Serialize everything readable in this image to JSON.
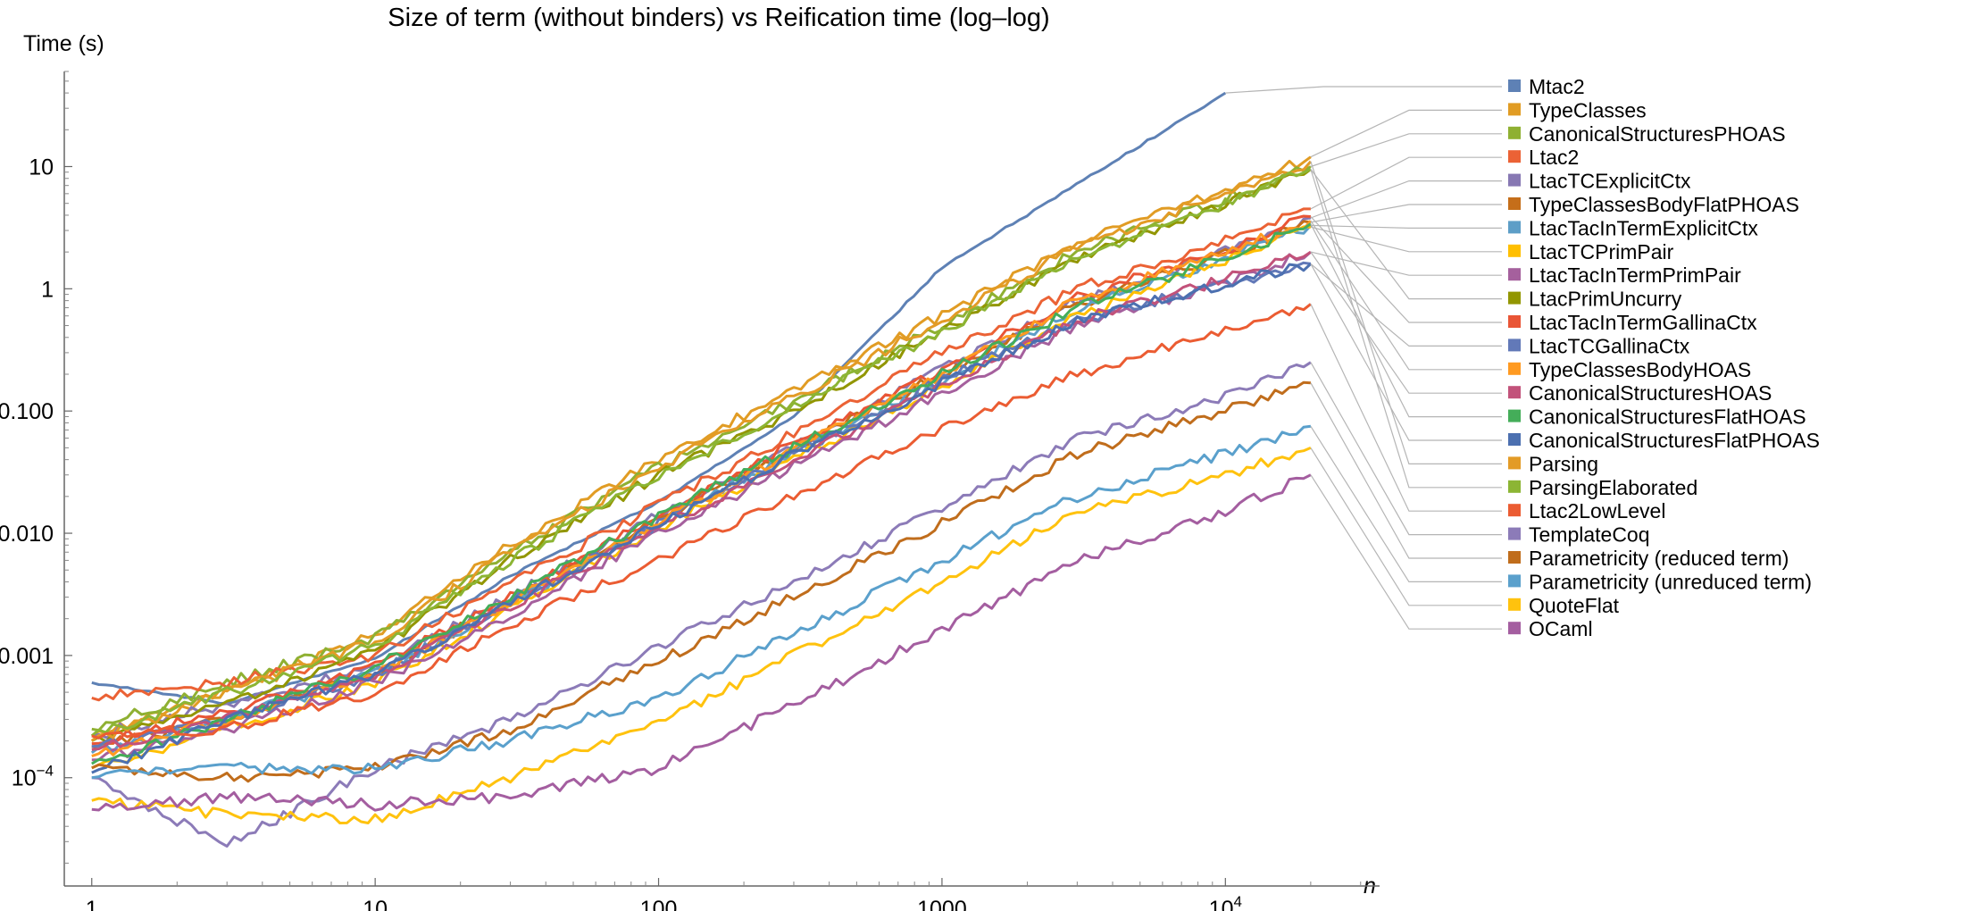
{
  "chart_data": {
    "type": "line",
    "title": "Size of term (without binders) vs Reification time (log–log)",
    "xlabel": "n",
    "ylabel": "Time (s)",
    "x_scale": "log",
    "y_scale": "log",
    "xlim": [
      0.8,
      35000
    ],
    "ylim": [
      1.3e-05,
      60
    ],
    "x_ticks": [
      {
        "value": 1,
        "label": "1"
      },
      {
        "value": 10,
        "label": "10"
      },
      {
        "value": 100,
        "label": "100"
      },
      {
        "value": 1000,
        "label": "1000"
      },
      {
        "value": 10000,
        "label": "10",
        "exponent": "4"
      }
    ],
    "y_ticks": [
      {
        "value": 0.0001,
        "label": "10",
        "exponent": "−4"
      },
      {
        "value": 0.001,
        "label": "0.001"
      },
      {
        "value": 0.01,
        "label": "0.010"
      },
      {
        "value": 0.1,
        "label": "0.100"
      },
      {
        "value": 1,
        "label": "1"
      },
      {
        "value": 10,
        "label": "10"
      }
    ],
    "grid": false,
    "legend_position": "right",
    "series": [
      {
        "name": "Mtac2",
        "color": "#5e81b5",
        "points": [
          [
            1,
            0.0006
          ],
          [
            3,
            0.0004
          ],
          [
            10,
            0.00095
          ],
          [
            30,
            0.0045
          ],
          [
            100,
            0.018
          ],
          [
            300,
            0.09
          ],
          [
            1000,
            1.5
          ],
          [
            10000,
            40
          ]
        ]
      },
      {
        "name": "TypeClasses",
        "color": "#e19c24",
        "points": [
          [
            1,
            0.00022
          ],
          [
            3,
            0.0005
          ],
          [
            10,
            0.0015
          ],
          [
            30,
            0.008
          ],
          [
            100,
            0.04
          ],
          [
            300,
            0.15
          ],
          [
            1000,
            0.6
          ],
          [
            3000,
            2.4
          ],
          [
            10000,
            6.5
          ],
          [
            20000,
            12
          ]
        ]
      },
      {
        "name": "CanonicalStructuresPHOAS",
        "color": "#8fb032",
        "points": [
          [
            1,
            0.00025
          ],
          [
            3,
            0.0006
          ],
          [
            10,
            0.0014
          ],
          [
            30,
            0.007
          ],
          [
            100,
            0.035
          ],
          [
            300,
            0.12
          ],
          [
            1000,
            0.5
          ],
          [
            3000,
            2.0
          ],
          [
            10000,
            5.5
          ],
          [
            20000,
            10
          ]
        ]
      },
      {
        "name": "Ltac2",
        "color": "#eb6235",
        "points": [
          [
            1,
            0.00045
          ],
          [
            3,
            0.0006
          ],
          [
            10,
            0.001
          ],
          [
            30,
            0.004
          ],
          [
            100,
            0.017
          ],
          [
            300,
            0.065
          ],
          [
            1000,
            0.3
          ],
          [
            3000,
            1.0
          ],
          [
            10000,
            2.5
          ],
          [
            20000,
            4.5
          ]
        ]
      },
      {
        "name": "LtacTCExplicitCtx",
        "color": "#8778b3",
        "points": [
          [
            1,
            0.00022
          ],
          [
            3,
            0.0004
          ],
          [
            10,
            0.0008
          ],
          [
            30,
            0.003
          ],
          [
            100,
            0.014
          ],
          [
            300,
            0.05
          ],
          [
            1000,
            0.22
          ],
          [
            3000,
            0.8
          ],
          [
            10000,
            2.0
          ],
          [
            20000,
            3.8
          ]
        ]
      },
      {
        "name": "TypeClassesBodyFlatPHOAS",
        "color": "#c56e1a",
        "points": [
          [
            1,
            0.00018
          ],
          [
            3,
            0.0003
          ],
          [
            10,
            0.0007
          ],
          [
            30,
            0.0028
          ],
          [
            100,
            0.013
          ],
          [
            300,
            0.05
          ],
          [
            1000,
            0.2
          ],
          [
            3000,
            0.75
          ],
          [
            10000,
            1.9
          ],
          [
            20000,
            3.5
          ]
        ]
      },
      {
        "name": "LtacTacInTermExplicitCtx",
        "color": "#5d9ec7",
        "points": [
          [
            1,
            0.00016
          ],
          [
            3,
            0.0003
          ],
          [
            10,
            0.0007
          ],
          [
            30,
            0.0026
          ],
          [
            100,
            0.012
          ],
          [
            300,
            0.045
          ],
          [
            1000,
            0.18
          ],
          [
            3000,
            0.7
          ],
          [
            10000,
            1.8
          ],
          [
            20000,
            3.3
          ]
        ]
      },
      {
        "name": "LtacTCPrimPair",
        "color": "#ffbf00",
        "points": [
          [
            1,
            0.00012
          ],
          [
            3,
            0.00025
          ],
          [
            10,
            0.0006
          ],
          [
            30,
            0.0024
          ],
          [
            100,
            0.011
          ],
          [
            300,
            0.04
          ],
          [
            1000,
            0.16
          ],
          [
            3000,
            0.6
          ],
          [
            10000,
            1.7
          ],
          [
            20000,
            3.2
          ]
        ]
      },
      {
        "name": "LtacTacInTermPrimPair",
        "color": "#a5609d",
        "points": [
          [
            1,
            0.00014
          ],
          [
            3,
            0.00025
          ],
          [
            10,
            0.0006
          ],
          [
            30,
            0.0022
          ],
          [
            100,
            0.01
          ],
          [
            300,
            0.035
          ],
          [
            1000,
            0.14
          ],
          [
            3000,
            0.5
          ],
          [
            10000,
            1.1
          ],
          [
            20000,
            2.0
          ]
        ]
      },
      {
        "name": "LtacPrimUncurry",
        "color": "#929600",
        "points": [
          [
            1,
            0.0002
          ],
          [
            3,
            0.0004
          ],
          [
            10,
            0.0011
          ],
          [
            30,
            0.006
          ],
          [
            100,
            0.03
          ],
          [
            300,
            0.1
          ],
          [
            1000,
            0.45
          ],
          [
            3000,
            1.8
          ],
          [
            10000,
            5.0
          ],
          [
            20000,
            9.5
          ]
        ]
      },
      {
        "name": "LtacTacInTermGallinaCtx",
        "color": "#e95536",
        "points": [
          [
            1,
            0.00019
          ],
          [
            3,
            0.00035
          ],
          [
            10,
            0.0008
          ],
          [
            30,
            0.003
          ],
          [
            100,
            0.014
          ],
          [
            300,
            0.055
          ],
          [
            1000,
            0.22
          ],
          [
            3000,
            0.85
          ],
          [
            10000,
            2.1
          ],
          [
            20000,
            3.9
          ]
        ]
      },
      {
        "name": "LtacTCGallinaCtx",
        "color": "#6279b8",
        "points": [
          [
            1,
            0.00018
          ],
          [
            3,
            0.0003
          ],
          [
            10,
            0.0007
          ],
          [
            30,
            0.0027
          ],
          [
            100,
            0.012
          ],
          [
            300,
            0.045
          ],
          [
            1000,
            0.18
          ],
          [
            3000,
            0.55
          ],
          [
            10000,
            1.1
          ],
          [
            20000,
            1.6
          ]
        ]
      },
      {
        "name": "TypeClassesBodyHOAS",
        "color": "#ff9a21",
        "points": [
          [
            1,
            0.00015
          ],
          [
            3,
            0.0003
          ],
          [
            10,
            0.0007
          ],
          [
            30,
            0.0027
          ],
          [
            100,
            0.012
          ],
          [
            300,
            0.048
          ],
          [
            1000,
            0.2
          ],
          [
            3000,
            0.8
          ],
          [
            10000,
            2.0
          ],
          [
            20000,
            3.6
          ]
        ]
      },
      {
        "name": "CanonicalStructuresHOAS",
        "color": "#c2527a",
        "points": [
          [
            1,
            0.00017
          ],
          [
            3,
            0.0003
          ],
          [
            10,
            0.0007
          ],
          [
            30,
            0.0025
          ],
          [
            100,
            0.011
          ],
          [
            300,
            0.04
          ],
          [
            1000,
            0.16
          ],
          [
            3000,
            0.55
          ],
          [
            10000,
            1.2
          ],
          [
            20000,
            2.0
          ]
        ]
      },
      {
        "name": "CanonicalStructuresFlatHOAS",
        "color": "#44ad59",
        "points": [
          [
            1,
            0.00013
          ],
          [
            3,
            0.0003
          ],
          [
            10,
            0.0008
          ],
          [
            30,
            0.003
          ],
          [
            100,
            0.014
          ],
          [
            300,
            0.05
          ],
          [
            1000,
            0.2
          ],
          [
            3000,
            0.7
          ],
          [
            10000,
            1.8
          ],
          [
            20000,
            3.4
          ]
        ]
      },
      {
        "name": "CanonicalStructuresFlatPHOAS",
        "color": "#4c70b0",
        "points": [
          [
            1,
            0.00011
          ],
          [
            3,
            0.0003
          ],
          [
            10,
            0.0007
          ],
          [
            30,
            0.0026
          ],
          [
            100,
            0.012
          ],
          [
            300,
            0.044
          ],
          [
            1000,
            0.17
          ],
          [
            3000,
            0.55
          ],
          [
            10000,
            1.1
          ],
          [
            20000,
            1.6
          ]
        ]
      },
      {
        "name": "Parsing",
        "color": "#e39b26",
        "points": [
          [
            1,
            0.0002
          ],
          [
            3,
            0.0005
          ],
          [
            10,
            0.0013
          ],
          [
            30,
            0.007
          ],
          [
            100,
            0.035
          ],
          [
            300,
            0.13
          ],
          [
            1000,
            0.55
          ],
          [
            3000,
            2.2
          ],
          [
            10000,
            6.0
          ],
          [
            20000,
            11
          ]
        ]
      },
      {
        "name": "ParsingElaborated",
        "color": "#8cb534",
        "points": [
          [
            1,
            0.00022
          ],
          [
            3,
            0.0005
          ],
          [
            10,
            0.0012
          ],
          [
            30,
            0.006
          ],
          [
            100,
            0.03
          ],
          [
            300,
            0.11
          ],
          [
            1000,
            0.45
          ],
          [
            3000,
            1.8
          ],
          [
            10000,
            5.0
          ],
          [
            20000,
            9.5
          ]
        ]
      },
      {
        "name": "Ltac2LowLevel",
        "color": "#eb5c32",
        "points": [
          [
            1,
            0.00022
          ],
          [
            3,
            0.00025
          ],
          [
            10,
            0.0005
          ],
          [
            30,
            0.0018
          ],
          [
            100,
            0.006
          ],
          [
            300,
            0.02
          ],
          [
            1000,
            0.07
          ],
          [
            3000,
            0.2
          ],
          [
            10000,
            0.45
          ],
          [
            20000,
            0.75
          ]
        ]
      },
      {
        "name": "TemplateCoq",
        "color": "#8c7bb8",
        "points": [
          [
            1,
            0.0001
          ],
          [
            2,
            4.5e-05
          ],
          [
            3,
            2.8e-05
          ],
          [
            10,
            0.00012
          ],
          [
            30,
            0.0003
          ],
          [
            100,
            0.0012
          ],
          [
            300,
            0.004
          ],
          [
            1000,
            0.016
          ],
          [
            3000,
            0.06
          ],
          [
            10000,
            0.13
          ],
          [
            20000,
            0.25
          ]
        ]
      },
      {
        "name": "Parametricity (reduced term)",
        "color": "#c06d1c",
        "points": [
          [
            1,
            0.00012
          ],
          [
            3,
            0.0001
          ],
          [
            10,
            0.00012
          ],
          [
            30,
            0.00025
          ],
          [
            100,
            0.0009
          ],
          [
            300,
            0.003
          ],
          [
            1000,
            0.012
          ],
          [
            3000,
            0.045
          ],
          [
            10000,
            0.1
          ],
          [
            20000,
            0.17
          ]
        ]
      },
      {
        "name": "Parametricity (unreduced term)",
        "color": "#5aa0cc",
        "points": [
          [
            1,
            0.0001
          ],
          [
            3,
            0.00012
          ],
          [
            10,
            0.00012
          ],
          [
            30,
            0.0002
          ],
          [
            100,
            0.00045
          ],
          [
            300,
            0.0015
          ],
          [
            1000,
            0.006
          ],
          [
            3000,
            0.02
          ],
          [
            10000,
            0.045
          ],
          [
            20000,
            0.075
          ]
        ]
      },
      {
        "name": "QuoteFlat",
        "color": "#ffc20e",
        "points": [
          [
            1,
            6.5e-05
          ],
          [
            3,
            5e-05
          ],
          [
            10,
            4.5e-05
          ],
          [
            30,
            0.0001
          ],
          [
            100,
            0.00028
          ],
          [
            300,
            0.001
          ],
          [
            1000,
            0.004
          ],
          [
            3000,
            0.015
          ],
          [
            10000,
            0.03
          ],
          [
            20000,
            0.05
          ]
        ]
      },
      {
        "name": "OCaml",
        "color": "#a45ea0",
        "points": [
          [
            1,
            5.5e-05
          ],
          [
            3,
            7e-05
          ],
          [
            10,
            6e-05
          ],
          [
            30,
            7e-05
          ],
          [
            100,
            0.00012
          ],
          [
            300,
            0.0004
          ],
          [
            1000,
            0.0016
          ],
          [
            3000,
            0.006
          ],
          [
            10000,
            0.015
          ],
          [
            20000,
            0.03
          ]
        ]
      }
    ]
  }
}
